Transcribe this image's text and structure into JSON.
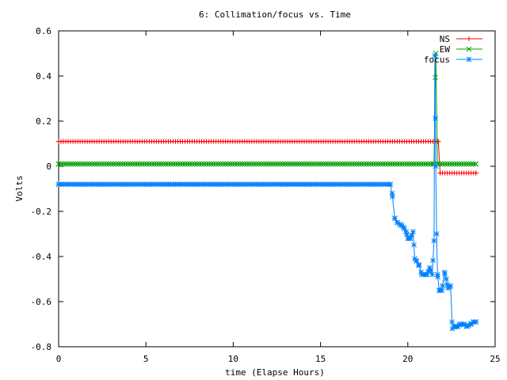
{
  "chart_data": {
    "type": "line",
    "title": "6: Collimation/focus vs. Time",
    "xlabel": "time (Elapse Hours)",
    "ylabel": "Volts",
    "xlim": [
      0,
      25
    ],
    "ylim": [
      -0.8,
      0.6
    ],
    "xticks": [
      0,
      5,
      10,
      15,
      20,
      25
    ],
    "xtick_labels": [
      "0",
      "5",
      "10",
      "15",
      "20",
      "25"
    ],
    "yticks": [
      -0.8,
      -0.6,
      -0.4,
      -0.2,
      0,
      0.2,
      0.4,
      0.6
    ],
    "ytick_labels": [
      "-0.8",
      "-0.6",
      "-0.4",
      "-0.2",
      "0",
      "0.2",
      "0.4",
      "0.6"
    ],
    "grid": false,
    "legend_position": "top-right",
    "series": [
      {
        "name": "NS",
        "color": "#ff0000",
        "marker": "plus",
        "x": [
          0,
          21.6,
          21.75,
          21.85,
          23.9
        ],
        "y": [
          0.11,
          0.11,
          0.11,
          -0.03,
          -0.03
        ]
      },
      {
        "name": "EW",
        "color": "#00a000",
        "marker": "cross",
        "x": [
          0,
          21.5,
          21.6,
          21.7,
          23.9
        ],
        "y": [
          0.01,
          0.01,
          0.5,
          0.01,
          0.01
        ]
      },
      {
        "name": "focus",
        "color": "#0080ff",
        "marker": "star",
        "x": [
          0,
          19.0,
          19.1,
          19.25,
          19.4,
          19.6,
          19.75,
          19.9,
          20.0,
          20.15,
          20.3,
          20.4,
          20.5,
          20.65,
          20.8,
          20.9,
          21.1,
          21.25,
          21.4,
          21.5,
          21.55,
          21.6,
          21.65,
          21.7,
          21.8,
          21.95,
          22.1,
          22.2,
          22.3,
          22.45,
          22.55,
          22.7,
          22.85,
          23.0,
          23.2,
          23.4,
          23.6,
          23.75,
          23.9
        ],
        "y": [
          -0.08,
          -0.08,
          -0.12,
          -0.23,
          -0.25,
          -0.26,
          -0.27,
          -0.29,
          -0.32,
          -0.32,
          -0.29,
          -0.41,
          -0.42,
          -0.44,
          -0.48,
          -0.48,
          -0.48,
          -0.45,
          -0.48,
          -0.33,
          0.49,
          0.0,
          -0.3,
          -0.48,
          -0.55,
          -0.55,
          -0.47,
          -0.5,
          -0.54,
          -0.53,
          -0.72,
          -0.71,
          -0.71,
          -0.7,
          -0.7,
          -0.71,
          -0.7,
          -0.69,
          -0.69
        ]
      }
    ]
  }
}
